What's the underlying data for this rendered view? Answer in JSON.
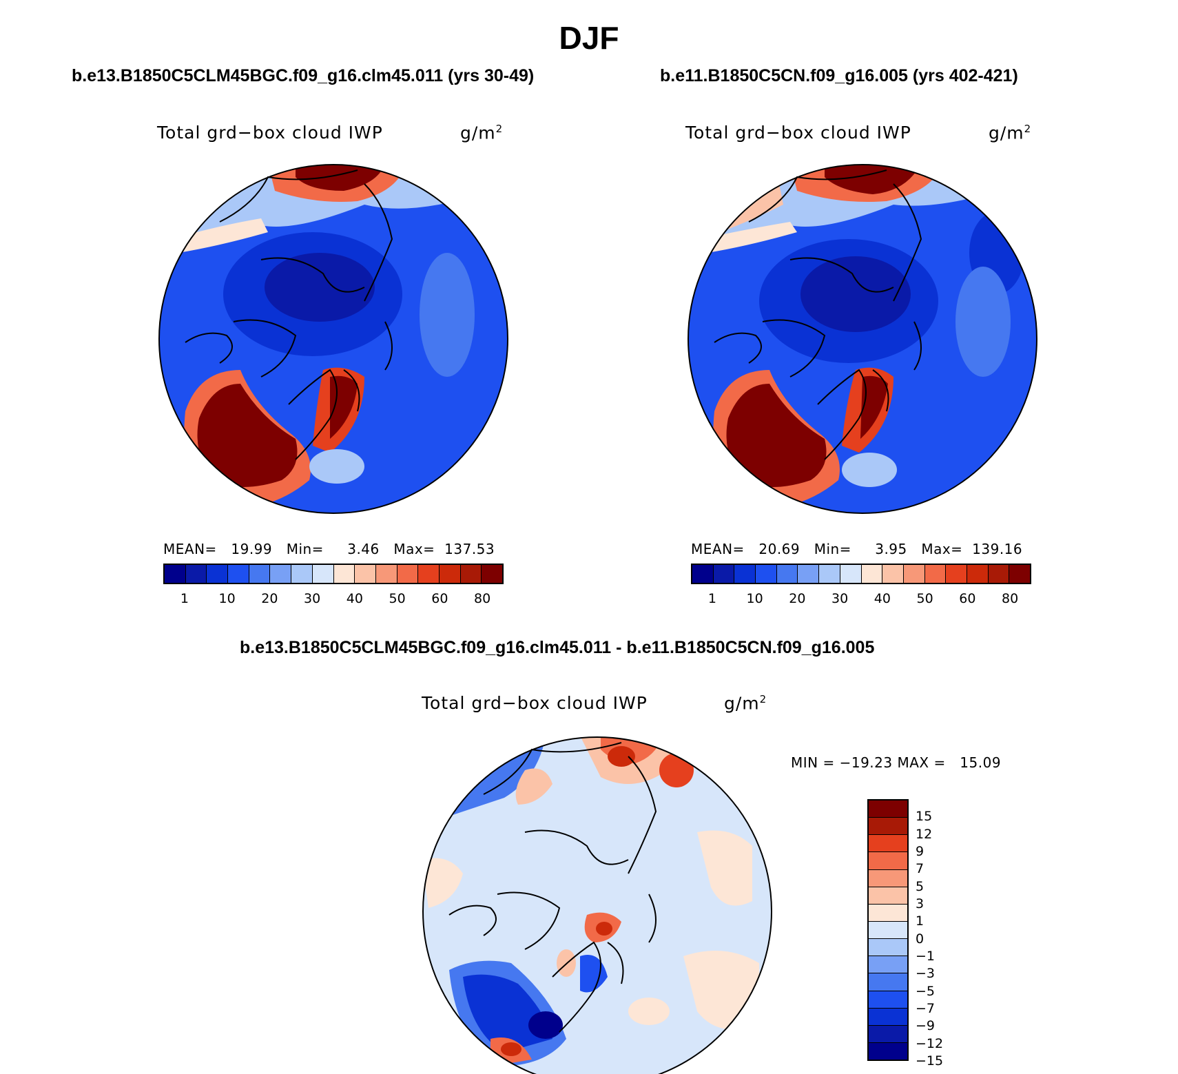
{
  "header": {
    "title": "DJF"
  },
  "panels": [
    {
      "case_title": "b.e13.B1850C5CLM45BGC.f09_g16.clm45.011 (yrs 30-49)",
      "variable": "Total grd−box cloud IWP",
      "units_base": "g/m",
      "units_exp": "2",
      "stats": "MEAN=   19.99   Min=     3.46   Max=  137.53"
    },
    {
      "case_title": "b.e11.B1850C5CN.f09_g16.005 (yrs 402-421)",
      "variable": "Total grd−box cloud IWP",
      "units_base": "g/m",
      "units_exp": "2",
      "stats": "MEAN=   20.69   Min=     3.95   Max=  139.16"
    }
  ],
  "diff_panel": {
    "case_title": "b.e13.B1850C5CLM45BGC.f09_g16.clm45.011 - b.e11.B1850C5CN.f09_g16.005",
    "variable": "Total grd−box cloud IWP",
    "units_base": "g/m",
    "units_exp": "2",
    "stats": "MIN = −19.23 MAX =   15.09"
  },
  "colorbar_abs": {
    "colors": [
      "#00008c",
      "#0a1aa8",
      "#0a32d4",
      "#1e50f0",
      "#4678f0",
      "#78a0f5",
      "#aac8f8",
      "#d7e6fa",
      "#fde6d6",
      "#fbc3a8",
      "#f79878",
      "#f26a48",
      "#e5401e",
      "#cc2a0a",
      "#a81a06",
      "#7d0000"
    ],
    "labels": [
      "1",
      "10",
      "20",
      "30",
      "40",
      "50",
      "60",
      "80"
    ]
  },
  "colorbar_diff": {
    "colors": [
      "#7d0000",
      "#a81a06",
      "#e5401e",
      "#f26a48",
      "#f79878",
      "#fbc3a8",
      "#fde6d6",
      "#d7e6fa",
      "#aac8f8",
      "#78a0f5",
      "#4678f0",
      "#1e50f0",
      "#0a32d4",
      "#0a1aa8",
      "#00008c"
    ],
    "labels": [
      "15",
      "12",
      "9",
      "7",
      "5",
      "3",
      "1",
      "0",
      "−1",
      "−3",
      "−5",
      "−7",
      "−9",
      "−12",
      "−15"
    ]
  }
}
